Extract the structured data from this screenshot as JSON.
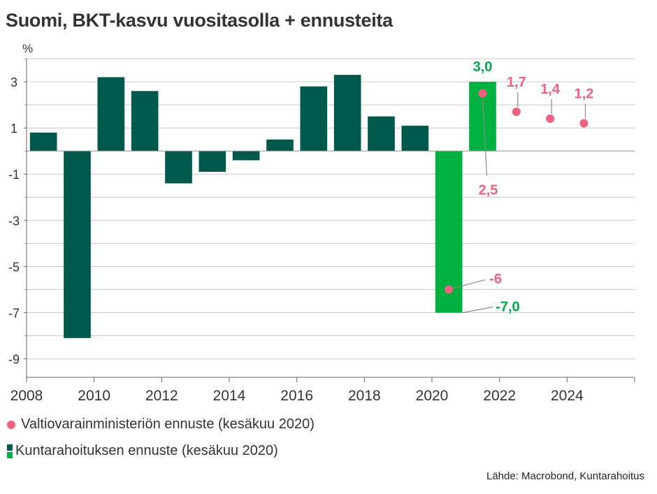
{
  "title": "Suomi, BKT-kasvu vuositasolla + ennusteita",
  "unit": "%",
  "source": "Lähde: Macrobond, Kuntarahoitus",
  "colors": {
    "historic": "#00594a",
    "forecast_bar": "#00b140",
    "vm_point": "#f0607f",
    "green_label": "#00a84c",
    "grid": "#c8c8c8"
  },
  "chart_data": {
    "type": "bar",
    "title": "Suomi, BKT-kasvu vuositasolla + ennusteita",
    "ylabel": "%",
    "xlim": [
      2008,
      2026
    ],
    "ylim": [
      -9.8,
      4
    ],
    "yticks": [
      3,
      1,
      -1,
      -3,
      -5,
      -7,
      -9
    ],
    "yticks_labels": [
      "3",
      "1",
      "-1",
      "-3",
      "-5",
      "-7",
      "-9"
    ],
    "xticks": [
      2008,
      2010,
      2012,
      2014,
      2016,
      2018,
      2020,
      2022,
      2024
    ],
    "xticks_labels": [
      "2008",
      "2010",
      "2012",
      "2014",
      "2016",
      "2018",
      "2020",
      "2022",
      "2024"
    ],
    "grid": true,
    "legend": "bottom",
    "series": [
      {
        "name": "Kuntarahoituksen ennuste (kesäkuu 2020)",
        "kind": "bar",
        "x": [
          2008,
          2009,
          2010,
          2011,
          2012,
          2013,
          2014,
          2015,
          2016,
          2017,
          2018,
          2019,
          2020,
          2021
        ],
        "values": [
          0.8,
          -8.1,
          3.2,
          2.6,
          -1.4,
          -0.9,
          -0.4,
          0.5,
          2.8,
          3.3,
          1.5,
          1.1,
          -7.0,
          3.0
        ],
        "forecast_from": 2020
      },
      {
        "name": "Valtiovarainministeriön ennuste (kesäkuu 2020)",
        "kind": "scatter",
        "x": [
          2020,
          2021,
          2022,
          2023,
          2024
        ],
        "values": [
          -6,
          2.5,
          1.7,
          1.4,
          1.2
        ]
      }
    ],
    "annotations": {
      "bar_labels": [
        {
          "x": 2020,
          "text": "-7,0"
        },
        {
          "x": 2021,
          "text": "3,0"
        }
      ],
      "point_labels": [
        {
          "x": 2020,
          "text": "-6"
        },
        {
          "x": 2021,
          "text": "2,5"
        },
        {
          "x": 2022,
          "text": "1,7"
        },
        {
          "x": 2023,
          "text": "1,4"
        },
        {
          "x": 2024,
          "text": "1,2"
        }
      ]
    }
  }
}
